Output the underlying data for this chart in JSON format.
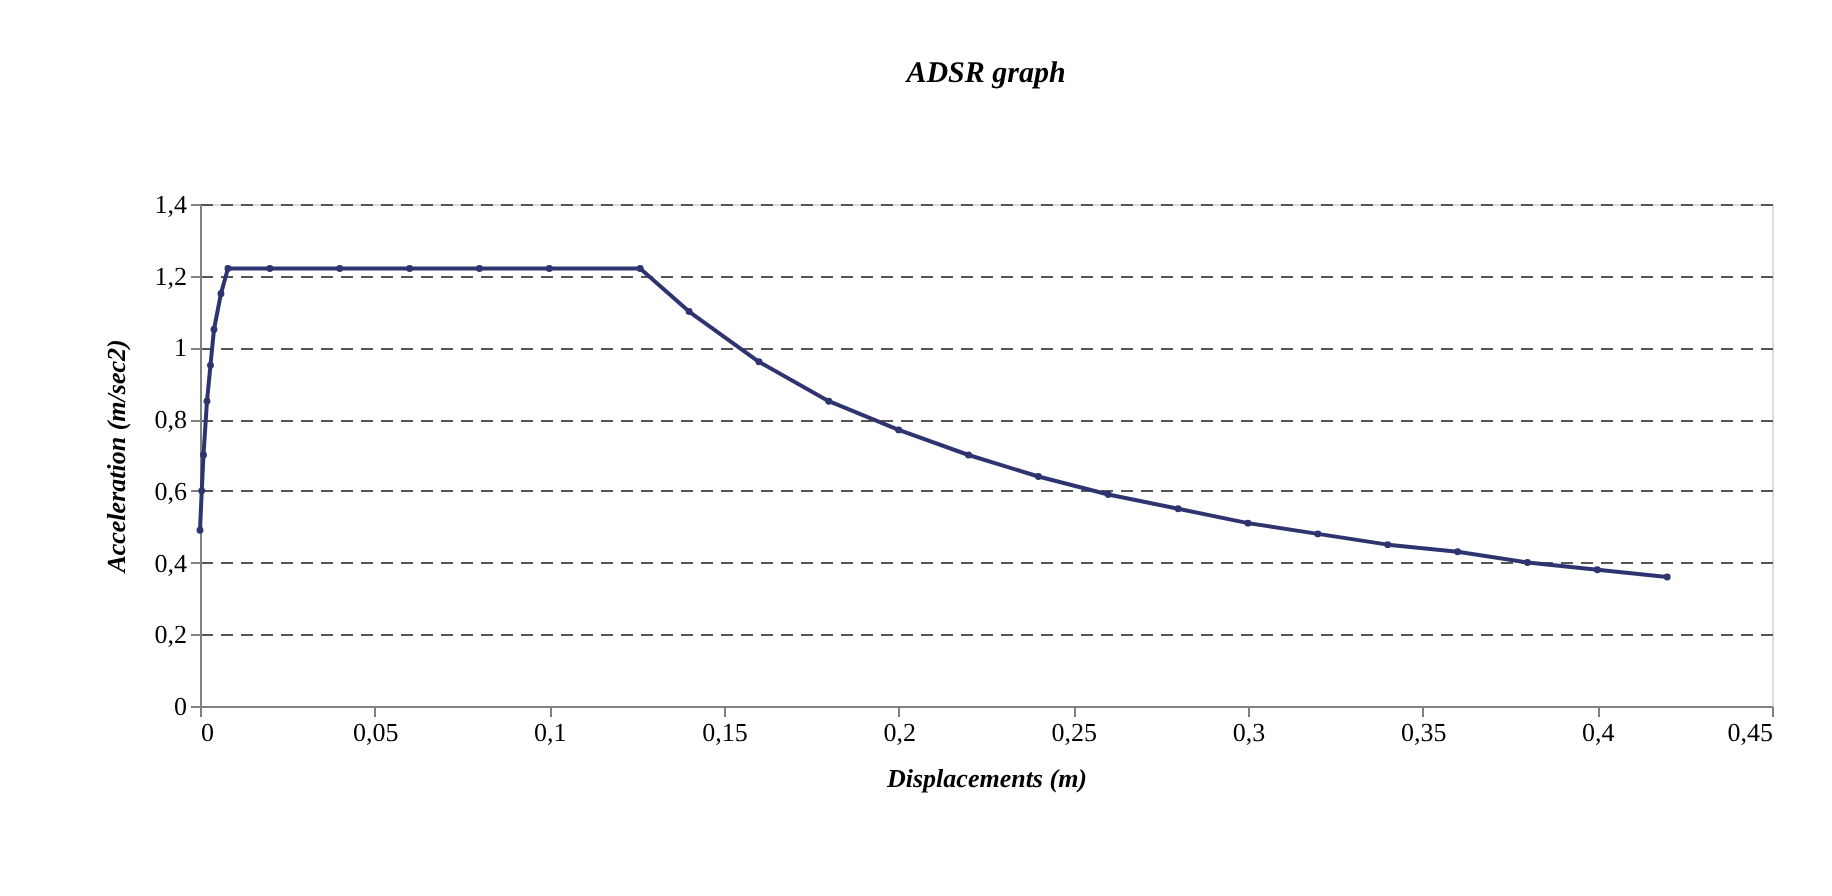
{
  "chart_data": {
    "type": "line",
    "title": "ADSR graph",
    "xlabel": "Displacements (m)",
    "ylabel": "Acceleration (m/sec2)",
    "x": [
      0,
      0.0005,
      0.001,
      0.002,
      0.003,
      0.004,
      0.006,
      0.008,
      0.02,
      0.04,
      0.06,
      0.08,
      0.1,
      0.126,
      0.14,
      0.16,
      0.18,
      0.2,
      0.22,
      0.24,
      0.26,
      0.28,
      0.3,
      0.32,
      0.34,
      0.36,
      0.38,
      0.4,
      0.42
    ],
    "series": [
      {
        "color": "#2e3470",
        "values": [
          0.49,
          0.6,
          0.7,
          0.85,
          0.95,
          1.05,
          1.15,
          1.22,
          1.22,
          1.22,
          1.22,
          1.22,
          1.22,
          1.22,
          1.1,
          0.96,
          0.85,
          0.77,
          0.7,
          0.64,
          0.59,
          0.55,
          0.51,
          0.48,
          0.45,
          0.43,
          0.4,
          0.38,
          0.36
        ]
      }
    ],
    "xlim": [
      0,
      0.45
    ],
    "ylim": [
      0,
      1.4
    ],
    "xticks": [
      0,
      {
        "value": 0.05,
        "label": "0,05"
      },
      {
        "value": 0.1,
        "label": "0,1"
      },
      {
        "value": 0.15,
        "label": "0,15"
      },
      {
        "value": 0.2,
        "label": "0,2"
      },
      {
        "value": 0.25,
        "label": "0,25"
      },
      {
        "value": 0.3,
        "label": "0,3"
      },
      {
        "value": 0.35,
        "label": "0,35"
      },
      {
        "value": 0.4,
        "label": "0,4"
      },
      {
        "value": 0.45,
        "label": "0,45"
      }
    ],
    "yticks": [
      0,
      {
        "value": 0.2,
        "label": "0,2"
      },
      {
        "value": 0.4,
        "label": "0,4"
      },
      {
        "value": 0.6,
        "label": "0,6"
      },
      {
        "value": 0.8,
        "label": "0,8"
      },
      1,
      {
        "value": 1.2,
        "label": "1,2"
      },
      {
        "value": 1.4,
        "label": "1,4"
      }
    ],
    "grid": "y",
    "marker": "circle",
    "line_style": "solid"
  }
}
